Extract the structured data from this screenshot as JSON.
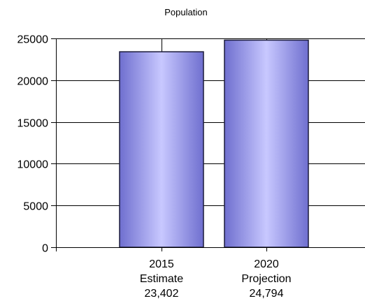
{
  "chart_data": {
    "type": "bar",
    "title": "Population",
    "categories": [
      {
        "year": "2015",
        "label": "Estimate",
        "value_label": "23,402"
      },
      {
        "year": "2020",
        "label": "Projection",
        "value_label": "24,794"
      }
    ],
    "values": [
      23402,
      24794
    ],
    "ylim": [
      0,
      25000
    ],
    "yticks": [
      "0",
      "5000",
      "10000",
      "15000",
      "20000",
      "25000"
    ],
    "grid": true,
    "colors": {
      "bar_edge": "#1a1a3a",
      "bar_light": "#c8c8ff",
      "bar_dark": "#6f6fcf",
      "grid": "#000000"
    }
  }
}
